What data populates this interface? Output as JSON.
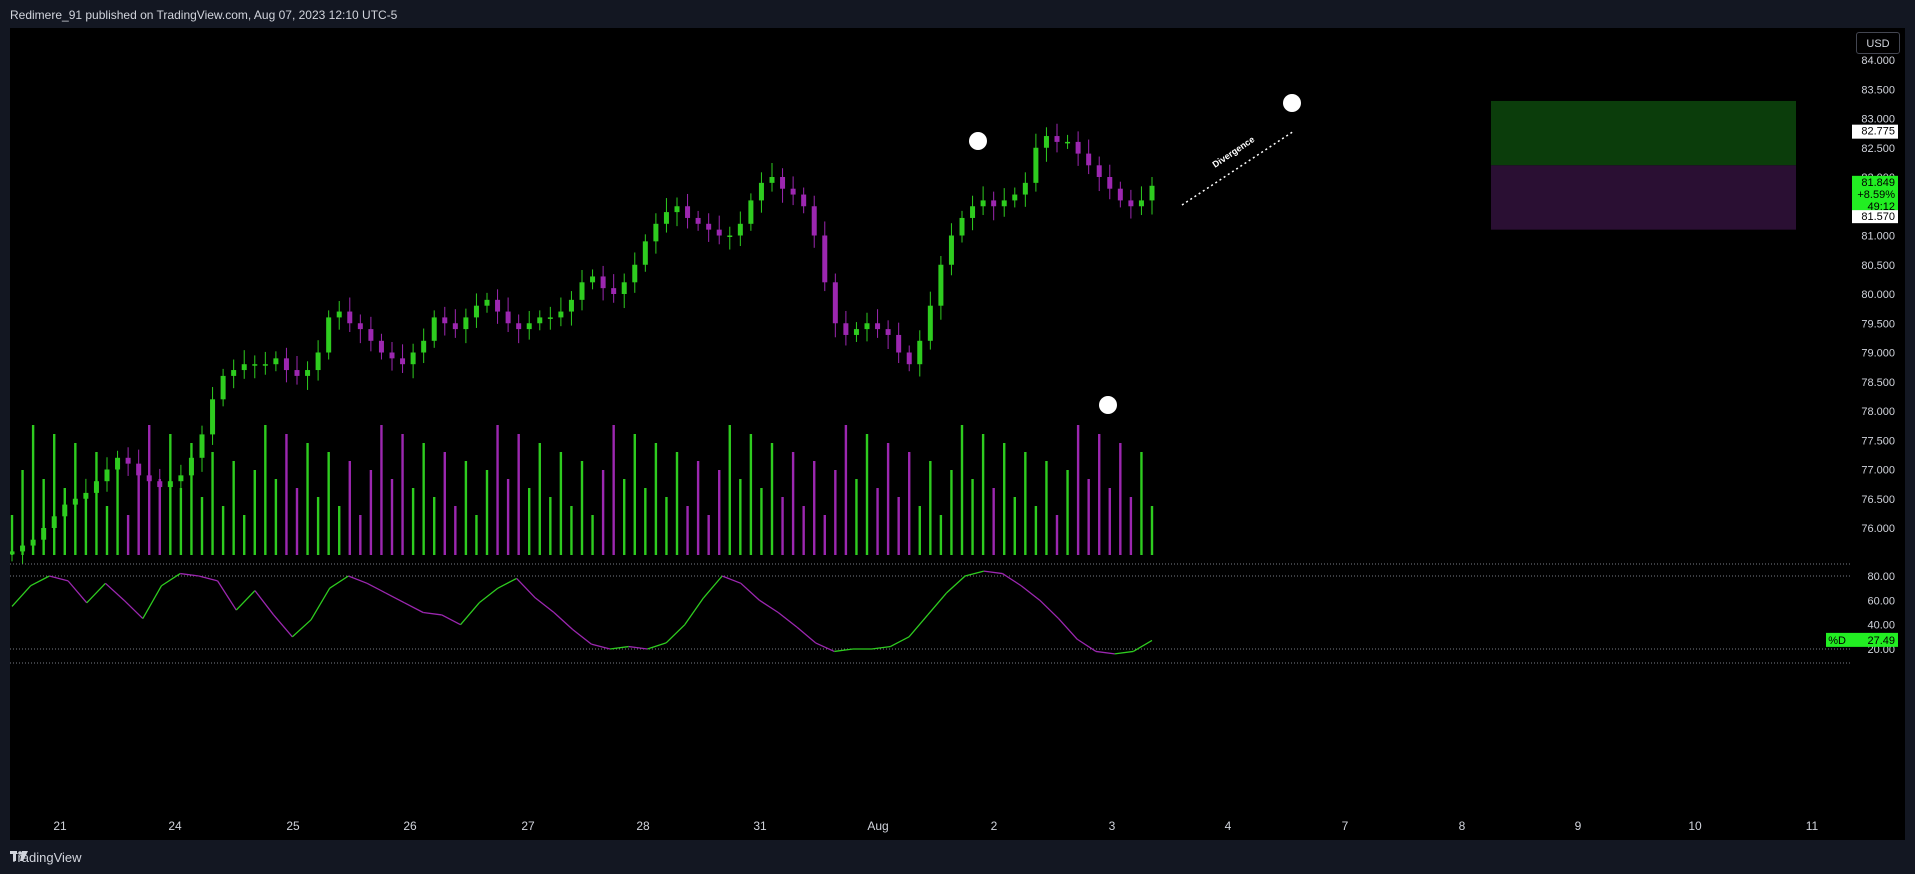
{
  "header": {
    "published_text": "Redimere_91 published on TradingView.com, Aug 07, 2023 12:10 UTC-5"
  },
  "footer": {
    "logo_text": "TradingView"
  },
  "price_scale": {
    "currency_button": "USD",
    "tick_labels": [
      "84.000",
      "83.500",
      "83.000",
      "82.500",
      "82.000",
      "81.500",
      "81.000",
      "80.500",
      "80.000",
      "79.500",
      "79.000",
      "78.500",
      "78.000",
      "77.500",
      "77.000",
      "76.500",
      "76.000"
    ],
    "marker_high": "82.775",
    "marker_last_price": "81.849",
    "marker_change": "+8.59%",
    "marker_countdown": "49:12",
    "marker_low": "81.570"
  },
  "oscillator": {
    "tick_labels": [
      "80.00",
      "60.00",
      "40.00",
      "20.00"
    ],
    "label": "%D",
    "value": "27.49"
  },
  "annotation": {
    "text": "Divergence"
  },
  "chart_data": {
    "type": "candlestick",
    "x_labels": [
      "21",
      "24",
      "25",
      "26",
      "27",
      "28",
      "31",
      "Aug",
      "2",
      "3",
      "4",
      "7",
      "8",
      "9",
      "10",
      "11"
    ],
    "price_range": [
      75.5,
      84.3
    ],
    "ohlc_closes_approx": [
      75.6,
      75.7,
      75.8,
      76.0,
      76.2,
      76.4,
      76.5,
      76.6,
      76.8,
      77.0,
      77.2,
      77.1,
      76.9,
      76.8,
      76.7,
      76.8,
      76.9,
      77.2,
      77.6,
      78.2,
      78.6,
      78.7,
      78.8,
      78.8,
      78.8,
      78.9,
      78.7,
      78.6,
      78.7,
      79.0,
      79.6,
      79.7,
      79.5,
      79.4,
      79.2,
      79.0,
      78.9,
      78.8,
      79.0,
      79.2,
      79.6,
      79.5,
      79.4,
      79.6,
      79.8,
      79.9,
      79.7,
      79.5,
      79.4,
      79.5,
      79.6,
      79.6,
      79.7,
      79.9,
      80.2,
      80.3,
      80.1,
      80.0,
      80.2,
      80.5,
      80.9,
      81.2,
      81.4,
      81.5,
      81.3,
      81.2,
      81.1,
      81.0,
      81.0,
      81.2,
      81.6,
      81.9,
      82.0,
      81.8,
      81.7,
      81.5,
      81.0,
      80.2,
      79.5,
      79.3,
      79.4,
      79.5,
      79.4,
      79.3,
      79.0,
      78.8,
      79.2,
      79.8,
      80.5,
      81.0,
      81.3,
      81.5,
      81.6,
      81.5,
      81.6,
      81.7,
      81.9,
      82.5,
      82.7,
      82.6,
      82.6,
      82.4,
      82.2,
      82.0,
      81.8,
      81.6,
      81.5,
      81.6,
      81.85
    ],
    "support_zone_green": [
      82.2,
      83.3
    ],
    "support_zone_purple": [
      81.1,
      82.2
    ],
    "oscillator_levels": [
      80,
      20
    ],
    "annotations": [
      "Divergence"
    ]
  },
  "colors": {
    "up": "#2ecc1f",
    "down": "#9c27b0",
    "zone_green": "#0b3d0b",
    "zone_purple": "#2a0f33"
  }
}
